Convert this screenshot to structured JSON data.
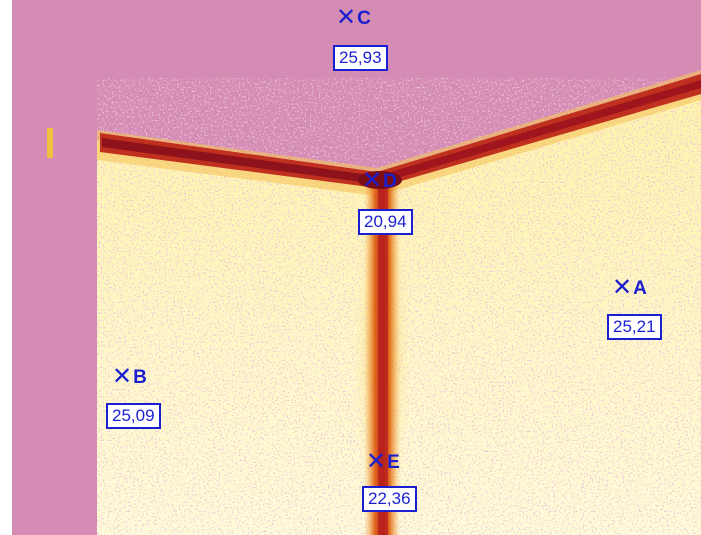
{
  "colors": {
    "background_pink": "#d48cb4",
    "warm_yellow": "#fff6b0",
    "hot_orange": "#e8701c",
    "cold_red": "#a0141e",
    "label_blue": "#1a1fd0"
  },
  "points": [
    {
      "id": "C",
      "value": "25,93"
    },
    {
      "id": "D",
      "value": "20,94"
    },
    {
      "id": "A",
      "value": "25,21"
    },
    {
      "id": "B",
      "value": "25,09"
    },
    {
      "id": "E",
      "value": "22,36"
    }
  ]
}
